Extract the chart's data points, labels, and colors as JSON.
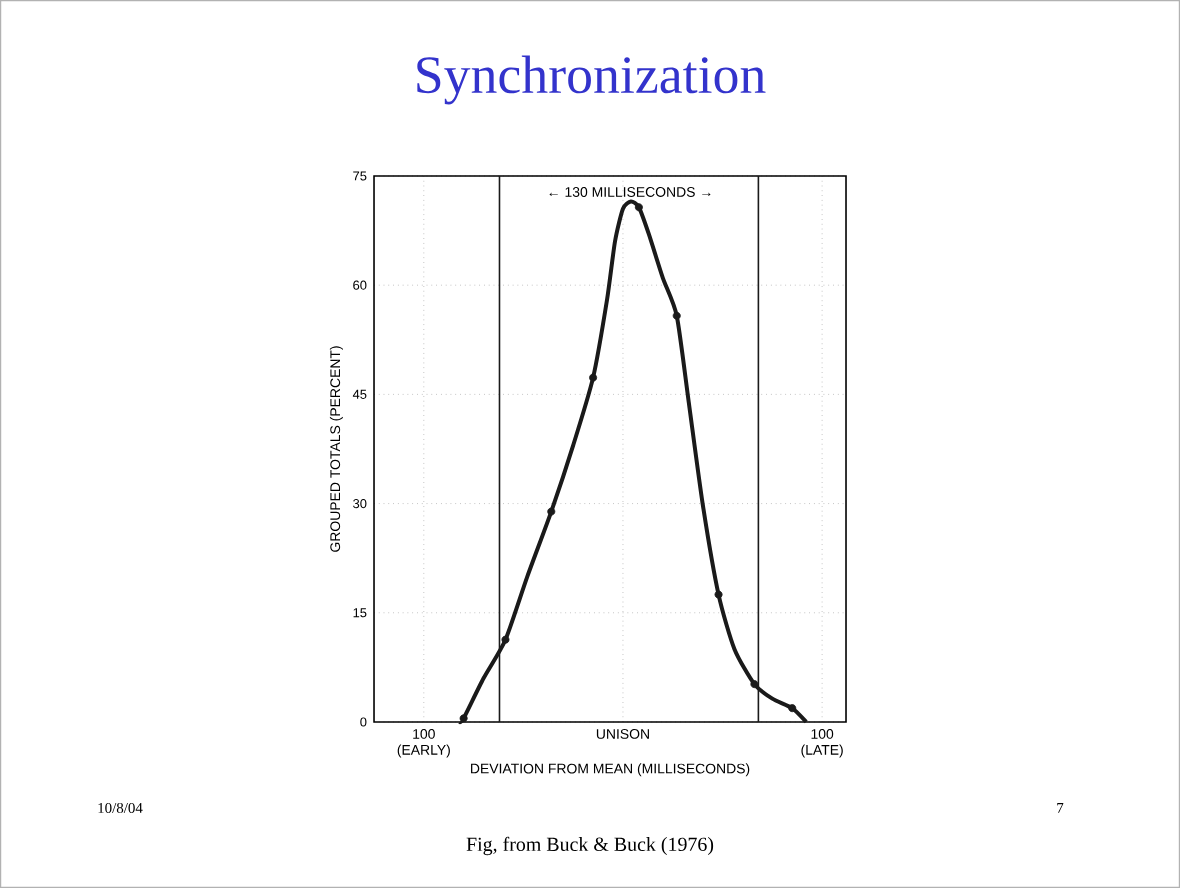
{
  "chart_data": {
    "type": "scatter",
    "title": "Synchronization",
    "xlabel": "DEVIATION FROM MEAN (MILLISECONDS)",
    "ylabel": "GROUPED TOTALS (PERCENT)",
    "xlim": [
      -125,
      112
    ],
    "ylim": [
      0,
      75
    ],
    "xticks": [
      {
        "value": -100,
        "label": "100 (EARLY)"
      },
      {
        "value": 0,
        "label": "UNISON"
      },
      {
        "value": 100,
        "label": "100 (LATE)"
      }
    ],
    "yticks": [
      0,
      15,
      30,
      45,
      60,
      75
    ],
    "grid": true,
    "marker": "circle",
    "series": [
      {
        "color": "#1a1a1a",
        "x": [
          -80,
          -59,
          -36,
          -15,
          8,
          27,
          48,
          66,
          85
        ],
        "values": [
          0.5,
          11.3,
          28.9,
          47.3,
          70.7,
          55.8,
          17.5,
          5.2,
          1.9
        ]
      },
      {
        "type": "line",
        "color": "#1a1a1a",
        "marker": "none",
        "line_style": "solid",
        "x": [
          -82,
          -80,
          -70,
          -59,
          -48,
          -36,
          -25,
          -15,
          -8,
          -4,
          0,
          4,
          8,
          13,
          20,
          27,
          33,
          40,
          48,
          56,
          66,
          75,
          85,
          92
        ],
        "values": [
          0,
          0.5,
          6,
          11.3,
          20,
          28.9,
          38,
          47.3,
          58,
          66,
          70.5,
          71.5,
          70.7,
          67,
          61,
          55.8,
          44,
          30,
          17.5,
          10,
          5.2,
          3.2,
          1.9,
          0
        ]
      }
    ],
    "ref_lines": [
      {
        "axis": "x",
        "value": -62,
        "color": "#1a1a1a"
      },
      {
        "axis": "x",
        "value": 68,
        "color": "#1a1a1a"
      }
    ],
    "annotations": [
      "← 130 MILLISECONDS →",
      "10/8/04",
      "7",
      "Fig, from Buck & Buck (1976)"
    ]
  }
}
